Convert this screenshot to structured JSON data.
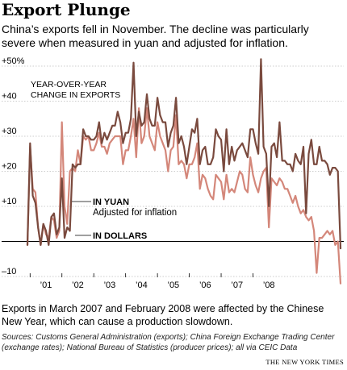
{
  "header": {
    "title": "Export Plunge",
    "subtitle": "China’s exports fell in November. The decline was particularly severe when measured in yuan and adjusted for inflation."
  },
  "footer": {
    "note": "Exports in March 2007 and February 2008 were affected by the Chinese New Year, which can cause a production slowdown.",
    "sources": "Sources: Customs General Administration (exports); China Foreign Exchange Trading Center (exchange rates); National Bureau of Statistics (producer prices); all via CEIC Data",
    "credit": "THE NEW YORK TIMES"
  },
  "chart_data": {
    "type": "line",
    "x_start": "2000-12",
    "x_end": "2008-11",
    "ylim": [
      -10,
      50
    ],
    "yticks": [
      {
        "value": 50,
        "label": "+50%"
      },
      {
        "value": 40,
        "label": "+40"
      },
      {
        "value": 30,
        "label": "+30"
      },
      {
        "value": 20,
        "label": "+20"
      },
      {
        "value": 10,
        "label": "+10"
      },
      {
        "value": 0,
        "label": ""
      },
      {
        "value": -10,
        "label": "–10"
      }
    ],
    "xticks": [
      {
        "year": 2001,
        "label": "’01"
      },
      {
        "year": 2002,
        "label": "’02"
      },
      {
        "year": 2003,
        "label": "’03"
      },
      {
        "year": 2004,
        "label": "’04"
      },
      {
        "year": 2005,
        "label": "’05"
      },
      {
        "year": 2006,
        "label": "’06"
      },
      {
        "year": 2007,
        "label": "’07"
      },
      {
        "year": 2008,
        "label": "’08"
      }
    ],
    "annotation": "YEAR-OVER-YEAR CHANGE IN EXPORTS",
    "colors": {
      "dollars": "#7a4a3e",
      "yuan": "#d4877a",
      "zero_line": "#000000",
      "grid": "#999999"
    },
    "series": [
      {
        "name": "IN DOLLARS",
        "key": "dollars",
        "values": [
          -1,
          28,
          13,
          11,
          4,
          -1,
          5,
          3,
          -1,
          7,
          8,
          2,
          4,
          18,
          1,
          4,
          3,
          22,
          21,
          22,
          22,
          32,
          30,
          30,
          29,
          29,
          30,
          34,
          28,
          31,
          29,
          31,
          33,
          33,
          37,
          34,
          28,
          31,
          31,
          35,
          51,
          30,
          37,
          33,
          34,
          42,
          35,
          33,
          33,
          41,
          36,
          34,
          34,
          27,
          31,
          33,
          41,
          28,
          30,
          27,
          22,
          27,
          32,
          31,
          35,
          22,
          26,
          27,
          22,
          22,
          24,
          32,
          30,
          29,
          20,
          32,
          22,
          27,
          23,
          26,
          27,
          28,
          26,
          24,
          32,
          32,
          28,
          25,
          52,
          27,
          25,
          10,
          27,
          28,
          24,
          34,
          23,
          23,
          22,
          22,
          20,
          25,
          23,
          22,
          27,
          8,
          25,
          29,
          22,
          22,
          27,
          23,
          23,
          22,
          19,
          21,
          21,
          20,
          -2
        ]
      },
      {
        "name": "IN YUAN",
        "sublabel": "Adjusted for inflation",
        "key": "yuan",
        "values": [
          -1,
          27,
          15,
          14,
          4,
          -1,
          5,
          2,
          1,
          7,
          6,
          1,
          3,
          34,
          10,
          5,
          20,
          21,
          20,
          26,
          22,
          30,
          29,
          30,
          26,
          26,
          28,
          31,
          27,
          27,
          25,
          28,
          29,
          30,
          30,
          30,
          22,
          26,
          26,
          30,
          35,
          24,
          38,
          28,
          30,
          38,
          30,
          28,
          26,
          34,
          30,
          28,
          26,
          20,
          26,
          27,
          36,
          22,
          23,
          22,
          18,
          22,
          22,
          24,
          28,
          15,
          19,
          18,
          15,
          13,
          12,
          19,
          18,
          17,
          12,
          19,
          14,
          15,
          14,
          17,
          20,
          19,
          15,
          14,
          24,
          19,
          16,
          14,
          18,
          20,
          21,
          4,
          18,
          17,
          16,
          18,
          17,
          15,
          15,
          13,
          11,
          13,
          10,
          8,
          9,
          7,
          6,
          7,
          3,
          -9,
          1,
          1,
          2,
          3,
          2,
          3,
          -1,
          0,
          -12
        ]
      }
    ],
    "labels": {
      "yuan_bold": "IN YUAN",
      "yuan_sub": "Adjusted for inflation",
      "dollars_bold": "IN DOLLARS"
    }
  }
}
